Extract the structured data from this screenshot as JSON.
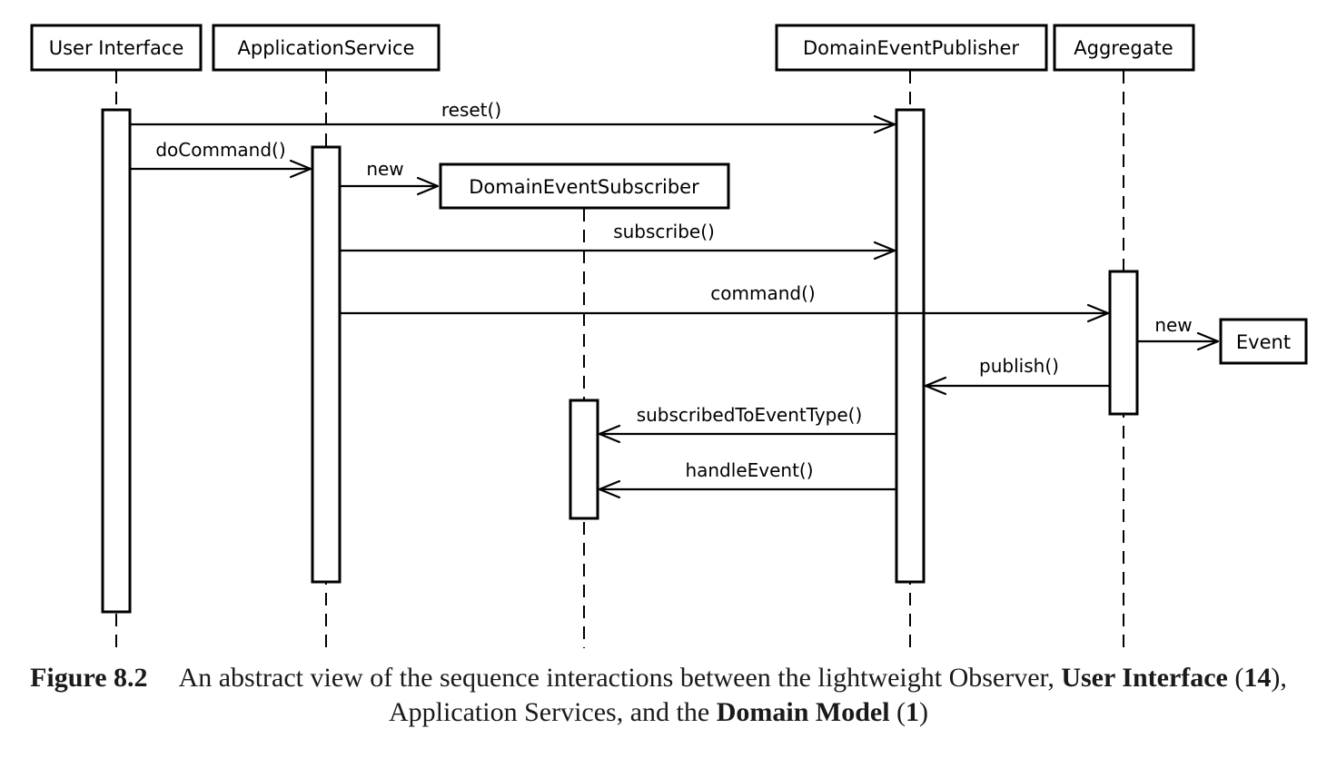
{
  "participants": [
    {
      "id": "ui",
      "name": "User Interface"
    },
    {
      "id": "app",
      "name": "ApplicationService"
    },
    {
      "id": "sub",
      "name": "DomainEventSubscriber"
    },
    {
      "id": "pub",
      "name": "DomainEventPublisher"
    },
    {
      "id": "agg",
      "name": "Aggregate"
    },
    {
      "id": "evt",
      "name": "Event"
    }
  ],
  "messages": [
    {
      "label": "reset()",
      "from": "ui",
      "to": "pub"
    },
    {
      "label": "doCommand()",
      "from": "ui",
      "to": "app"
    },
    {
      "label": "new",
      "from": "app",
      "to": "sub",
      "kind": "create"
    },
    {
      "label": "subscribe()",
      "from": "app",
      "to": "pub"
    },
    {
      "label": "command()",
      "from": "app",
      "to": "agg"
    },
    {
      "label": "new",
      "from": "agg",
      "to": "evt",
      "kind": "create"
    },
    {
      "label": "publish()",
      "from": "agg",
      "to": "pub"
    },
    {
      "label": "subscribedToEventType()",
      "from": "pub",
      "to": "sub"
    },
    {
      "label": "handleEvent()",
      "from": "pub",
      "to": "sub"
    }
  ],
  "caption": {
    "number": "Figure 8.2",
    "text1": "An abstract view of the sequence interactions between the lightweight Observer, ",
    "bold1": "User Interface",
    "ref1": "14",
    "text2": ", Application Services, and the ",
    "bold2": "Domain Model",
    "ref2": "1"
  }
}
